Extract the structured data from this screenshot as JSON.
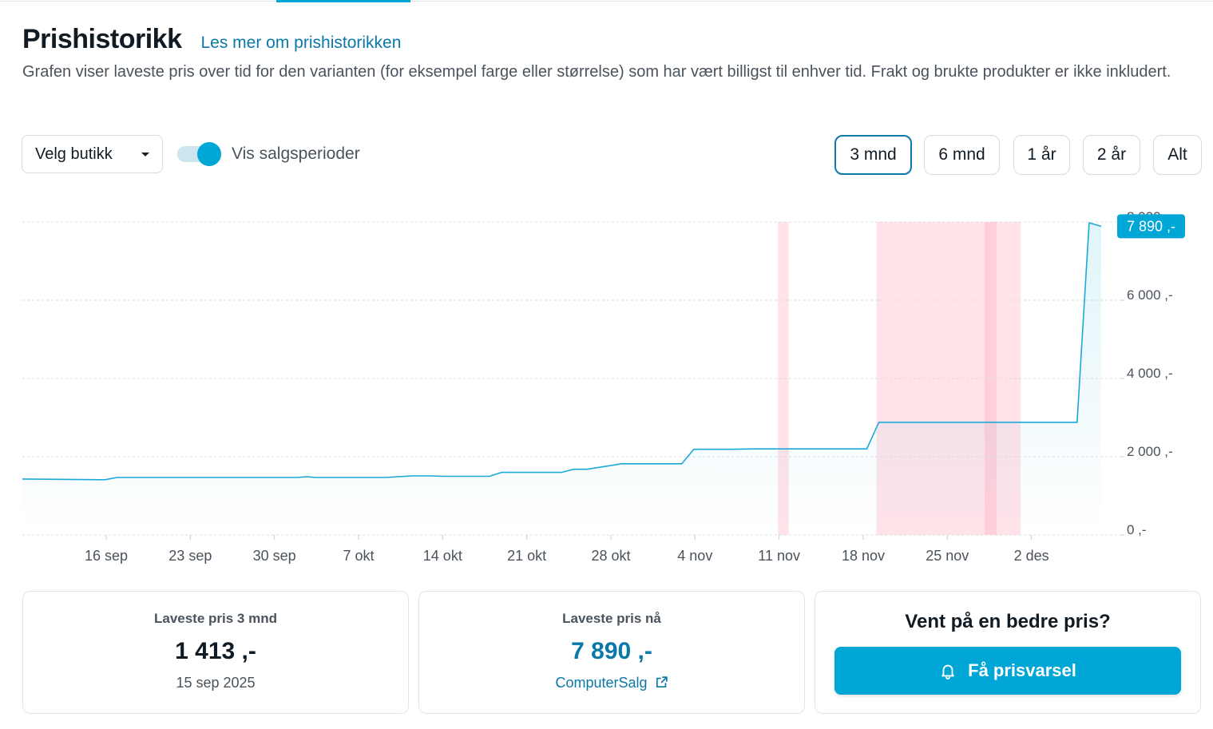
{
  "header": {
    "title": "Prishistorikk",
    "read_more": "Les mer om prishistorikken",
    "description": "Grafen viser laveste pris over tid for den varianten (for eksempel farge eller størrelse) som har vært billigst til enhver tid. Frakt og brukte produkter er ikke inkludert."
  },
  "controls": {
    "store_select": "Velg butikk",
    "toggle_label": "Vis salgsperioder",
    "toggle_on": true,
    "ranges": [
      {
        "label": "3 mnd",
        "active": true
      },
      {
        "label": "6 mnd",
        "active": false
      },
      {
        "label": "1 år",
        "active": false
      },
      {
        "label": "2 år",
        "active": false
      },
      {
        "label": "Alt",
        "active": false
      }
    ]
  },
  "chart_data": {
    "type": "line",
    "x_ticks": [
      {
        "label": "16 sep",
        "day": 16
      },
      {
        "label": "23 sep",
        "day": 23
      },
      {
        "label": "30 sep",
        "day": 30
      },
      {
        "label": "7 okt",
        "day": 37
      },
      {
        "label": "14 okt",
        "day": 44
      },
      {
        "label": "21 okt",
        "day": 51
      },
      {
        "label": "28 okt",
        "day": 58
      },
      {
        "label": "4 nov",
        "day": 65
      },
      {
        "label": "11 nov",
        "day": 72
      },
      {
        "label": "18 nov",
        "day": 79
      },
      {
        "label": "25 nov",
        "day": 86
      },
      {
        "label": "2 des",
        "day": 93
      }
    ],
    "y_ticks": [
      {
        "label": "0 ,-",
        "value": 0
      },
      {
        "label": "2 000 ,-",
        "value": 2000
      },
      {
        "label": "4 000 ,-",
        "value": 4000
      },
      {
        "label": "6 000 ,-",
        "value": 6000
      },
      {
        "label": "8 000",
        "value": 8000
      }
    ],
    "ylim": [
      0,
      8000
    ],
    "series": [
      {
        "points": [
          [
            9,
            1430
          ],
          [
            15.9,
            1413
          ],
          [
            16.9,
            1470
          ],
          [
            25,
            1470
          ],
          [
            31.9,
            1470
          ],
          [
            32.7,
            1490
          ],
          [
            33.4,
            1470
          ],
          [
            38,
            1470
          ],
          [
            39.3,
            1470
          ],
          [
            40.3,
            1490
          ],
          [
            41.5,
            1510
          ],
          [
            43,
            1510
          ],
          [
            44,
            1500
          ],
          [
            47.9,
            1500
          ],
          [
            48.9,
            1600
          ],
          [
            53.9,
            1600
          ],
          [
            54.9,
            1680
          ],
          [
            56,
            1680
          ],
          [
            58.9,
            1820
          ],
          [
            60.5,
            1820
          ],
          [
            63.9,
            1820
          ],
          [
            64.9,
            2190
          ],
          [
            68,
            2190
          ],
          [
            69.9,
            2200
          ],
          [
            75.3,
            2200
          ],
          [
            79.3,
            2200
          ],
          [
            80.3,
            2880
          ],
          [
            86,
            2880
          ],
          [
            96.8,
            2880
          ],
          [
            97.8,
            7980
          ],
          [
            98.8,
            7890
          ]
        ]
      }
    ],
    "sale_periods": [
      {
        "start": 71.9,
        "end": 72.8
      },
      {
        "start": 80.1,
        "end": 92.1
      },
      {
        "start": 89.1,
        "end": 90.1
      }
    ],
    "current_price_label": "7 890 ,-",
    "current_price": 7890,
    "grid": true
  },
  "stats": {
    "lowest": {
      "label": "Laveste pris 3 mnd",
      "value": "1 413 ,-",
      "date": "15 sep 2025"
    },
    "current": {
      "label": "Laveste pris nå",
      "value": "7 890 ,-",
      "store": "ComputerSalg"
    },
    "alert": {
      "title": "Vent på en bedre pris?",
      "button": "Få prisvarsel"
    }
  },
  "icons": {
    "alert": "bell-icon",
    "external": "external-link-icon"
  },
  "colors": {
    "accent": "#00a6d6",
    "link": "#0a78a8",
    "sale_period": "#ffe3e9",
    "sale_highlight": "#ffc9d6"
  }
}
